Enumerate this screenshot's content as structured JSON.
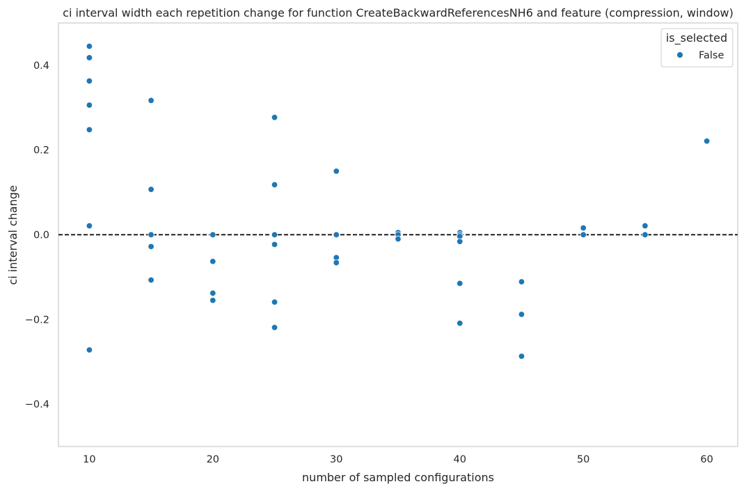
{
  "chart_data": {
    "type": "scatter",
    "title": "ci interval width each repetition change for function CreateBackwardReferencesNH6 and feature (compression, window)",
    "xlabel": "number of sampled configurations",
    "ylabel": "ci interval change",
    "xlim": [
      7.5,
      62.5
    ],
    "ylim": [
      -0.5,
      0.5
    ],
    "xticks": [
      10,
      20,
      30,
      40,
      50,
      60
    ],
    "xtick_labels": [
      "10",
      "20",
      "30",
      "40",
      "50",
      "60"
    ],
    "yticks": [
      -0.4,
      -0.2,
      0.0,
      0.2,
      0.4
    ],
    "ytick_labels": [
      "−0.4",
      "−0.2",
      "0.0",
      "0.2",
      "0.4"
    ],
    "grid": false,
    "reference_line": {
      "y": 0.0,
      "style": "dashed",
      "color": "#000000"
    },
    "legend": {
      "title": "is_selected",
      "position": "top-right",
      "entries": [
        "False"
      ]
    },
    "series": [
      {
        "name": "False",
        "color": "#1f77b4",
        "points": [
          [
            10,
            0.445
          ],
          [
            10,
            0.418
          ],
          [
            10,
            0.363
          ],
          [
            10,
            0.306
          ],
          [
            10,
            0.248
          ],
          [
            10,
            0.021
          ],
          [
            10,
            -0.272
          ],
          [
            15,
            0.317
          ],
          [
            15,
            0.107
          ],
          [
            15,
            0.0
          ],
          [
            15,
            -0.028
          ],
          [
            15,
            -0.107
          ],
          [
            20,
            0.0
          ],
          [
            20,
            -0.063
          ],
          [
            20,
            -0.138
          ],
          [
            20,
            -0.155
          ],
          [
            25,
            0.277
          ],
          [
            25,
            0.118
          ],
          [
            25,
            0.0
          ],
          [
            25,
            -0.023
          ],
          [
            25,
            -0.159
          ],
          [
            25,
            -0.219
          ],
          [
            30,
            0.15
          ],
          [
            30,
            0.0
          ],
          [
            30,
            -0.054
          ],
          [
            30,
            -0.066
          ],
          [
            35,
            0.005
          ],
          [
            35,
            0.0
          ],
          [
            35,
            -0.01
          ],
          [
            40,
            0.005
          ],
          [
            40,
            0.0
          ],
          [
            40,
            -0.004
          ],
          [
            40,
            -0.016
          ],
          [
            40,
            -0.115
          ],
          [
            40,
            -0.209
          ],
          [
            45,
            -0.111
          ],
          [
            45,
            -0.188
          ],
          [
            45,
            -0.287
          ],
          [
            50,
            0.016
          ],
          [
            50,
            0.0
          ],
          [
            55,
            0.021
          ],
          [
            55,
            0.0
          ],
          [
            60,
            0.221
          ]
        ]
      }
    ]
  }
}
